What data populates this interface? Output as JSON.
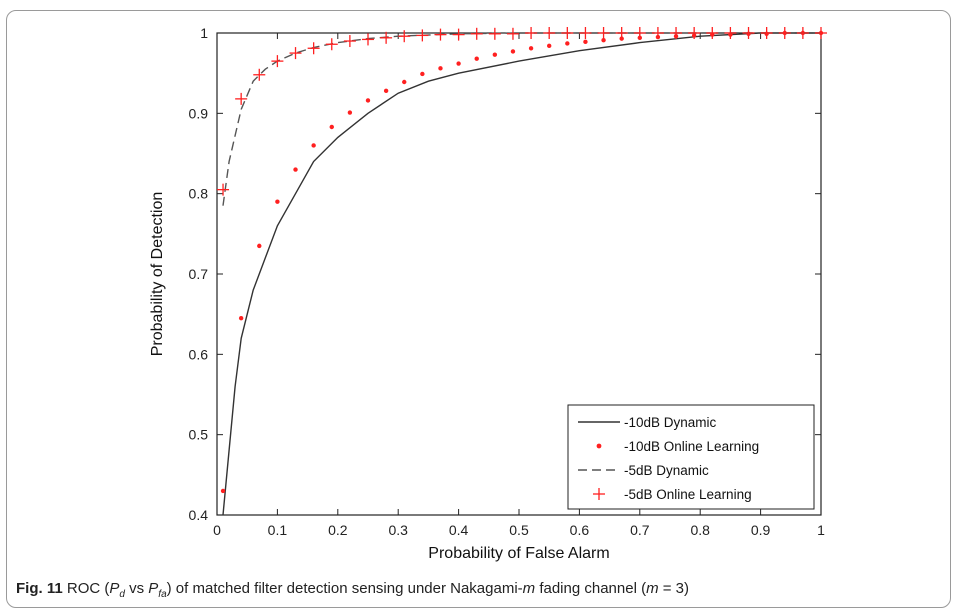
{
  "chart_data": {
    "type": "line",
    "xlabel": "Probability of False Alarm",
    "ylabel": "Probability of Detection",
    "xlim": [
      0,
      1
    ],
    "ylim": [
      0.4,
      1
    ],
    "xticks": [
      0,
      0.1,
      0.2,
      0.3,
      0.4,
      0.5,
      0.6,
      0.7,
      0.8,
      0.9,
      1
    ],
    "xtick_labels": [
      "0",
      "0.1",
      "0.2",
      "0.3",
      "0.4",
      "0.5",
      "0.6",
      "0.7",
      "0.8",
      "0.9",
      "1"
    ],
    "yticks": [
      0.4,
      0.5,
      0.6,
      0.7,
      0.8,
      0.9,
      1
    ],
    "ytick_labels": [
      "0.4",
      "0.5",
      "0.6",
      "0.7",
      "0.8",
      "0.9",
      "1"
    ],
    "grid": false,
    "legend_position": "bottom-right",
    "series": [
      {
        "name": "-10dB Dynamic",
        "style": "solid",
        "color": "#333333",
        "x": [
          0.01,
          0.03,
          0.04,
          0.06,
          0.08,
          0.1,
          0.13,
          0.16,
          0.2,
          0.25,
          0.3,
          0.35,
          0.4,
          0.5,
          0.6,
          0.7,
          0.8,
          0.9,
          1.0
        ],
        "y": [
          0.4,
          0.56,
          0.62,
          0.68,
          0.72,
          0.76,
          0.8,
          0.84,
          0.87,
          0.9,
          0.925,
          0.94,
          0.95,
          0.965,
          0.978,
          0.988,
          0.996,
          1.0,
          1.0
        ]
      },
      {
        "name": "-10dB Online Learning",
        "style": "dots",
        "color": "#ff2020",
        "x": [
          0.01,
          0.04,
          0.07,
          0.1,
          0.13,
          0.16,
          0.19,
          0.22,
          0.25,
          0.28,
          0.31,
          0.34,
          0.37,
          0.4,
          0.43,
          0.46,
          0.49,
          0.52,
          0.55,
          0.58,
          0.61,
          0.64,
          0.67,
          0.7,
          0.73,
          0.76,
          0.79,
          0.82,
          0.85,
          0.88,
          0.91,
          0.94,
          0.97,
          1.0
        ],
        "y": [
          0.43,
          0.645,
          0.735,
          0.79,
          0.83,
          0.86,
          0.883,
          0.901,
          0.916,
          0.928,
          0.939,
          0.949,
          0.956,
          0.962,
          0.968,
          0.973,
          0.977,
          0.981,
          0.984,
          0.987,
          0.989,
          0.991,
          0.993,
          0.994,
          0.995,
          0.996,
          0.997,
          0.998,
          0.998,
          0.999,
          0.999,
          1.0,
          1.0,
          1.0
        ]
      },
      {
        "name": "-5dB Dynamic",
        "style": "dashed",
        "color": "#555555",
        "x": [
          0.01,
          0.02,
          0.04,
          0.06,
          0.08,
          0.1,
          0.13,
          0.16,
          0.2,
          0.25,
          0.3,
          0.4,
          0.5,
          0.6,
          0.7,
          0.8,
          0.9,
          1.0
        ],
        "y": [
          0.785,
          0.84,
          0.905,
          0.94,
          0.955,
          0.965,
          0.975,
          0.982,
          0.988,
          0.993,
          0.996,
          0.999,
          1.0,
          1.0,
          1.0,
          1.0,
          1.0,
          1.0
        ]
      },
      {
        "name": "-5dB Online Learning",
        "style": "plus",
        "color": "#ff2020",
        "x": [
          0.01,
          0.04,
          0.07,
          0.1,
          0.13,
          0.16,
          0.19,
          0.22,
          0.25,
          0.28,
          0.31,
          0.34,
          0.37,
          0.4,
          0.43,
          0.46,
          0.49,
          0.52,
          0.55,
          0.58,
          0.61,
          0.64,
          0.67,
          0.7,
          0.73,
          0.76,
          0.79,
          0.82,
          0.85,
          0.88,
          0.91,
          0.94,
          0.97,
          1.0
        ],
        "y": [
          0.805,
          0.918,
          0.948,
          0.965,
          0.975,
          0.981,
          0.986,
          0.99,
          0.992,
          0.994,
          0.996,
          0.997,
          0.998,
          0.998,
          0.999,
          0.999,
          0.999,
          1.0,
          1.0,
          1.0,
          1.0,
          1.0,
          1.0,
          1.0,
          1.0,
          1.0,
          1.0,
          1.0,
          1.0,
          1.0,
          1.0,
          1.0,
          1.0,
          1.0
        ]
      }
    ]
  },
  "caption": {
    "fig_label": "Fig. 11",
    "text_1": "ROC (",
    "pd_main": "P",
    "pd_sub": "d",
    "text_2": " vs ",
    "pfa_main": "P",
    "pfa_sub": "fa",
    "text_3": ") of matched filter detection sensing under Nakagami-",
    "m_italic": "m",
    "text_4": " fading channel (",
    "m_italic_2": "m",
    "text_5": " = 3)"
  }
}
